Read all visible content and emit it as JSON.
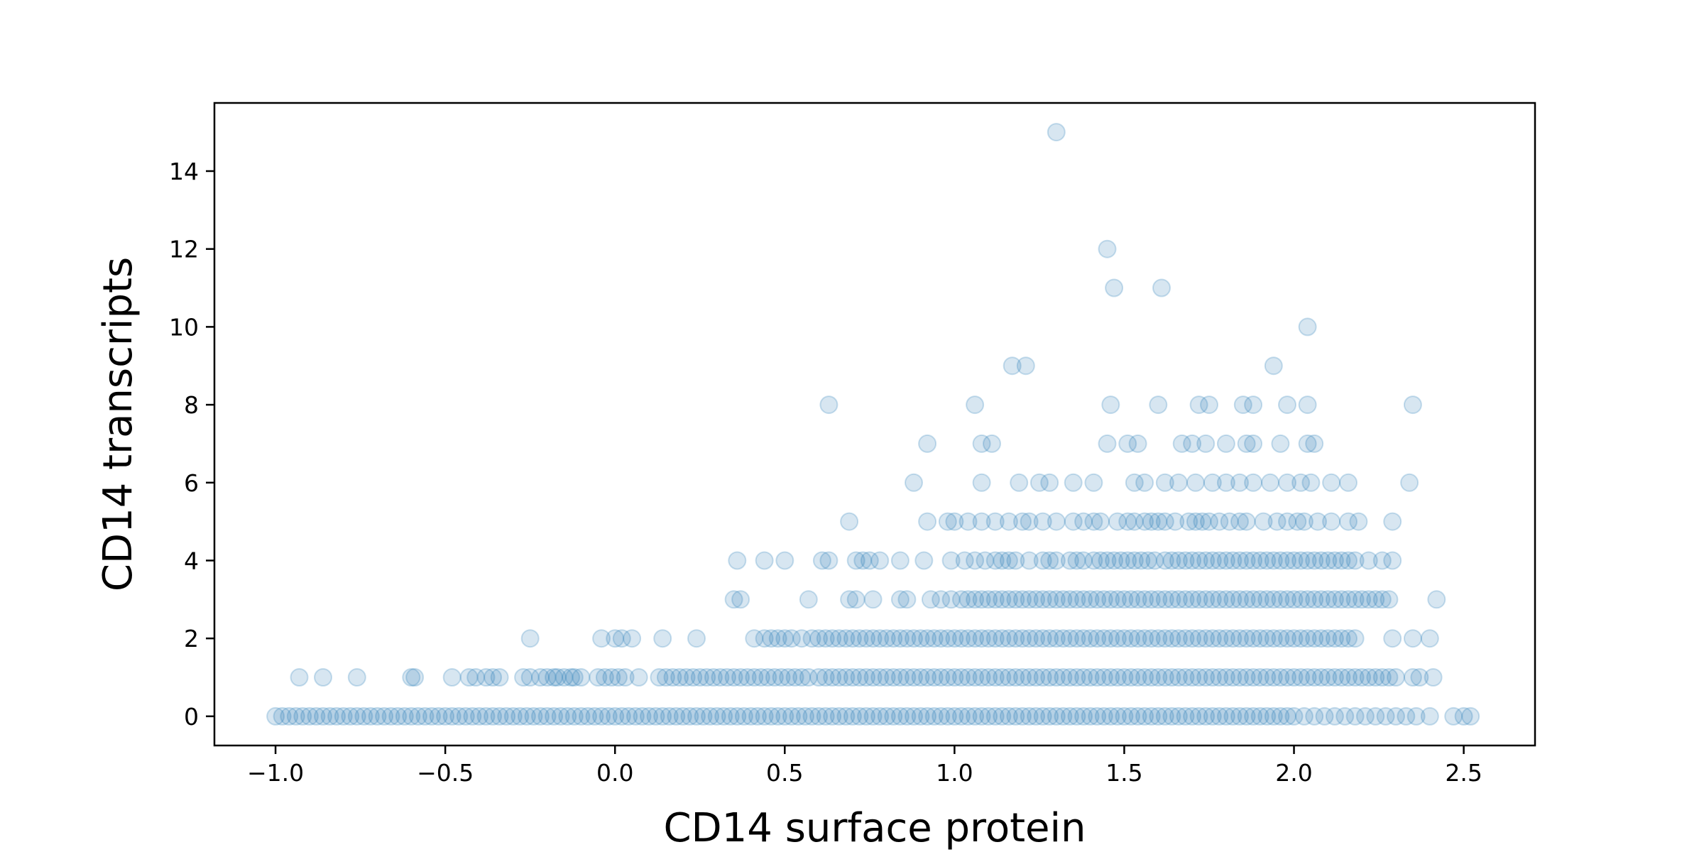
{
  "chart_data": {
    "type": "scatter",
    "title": "",
    "xlabel": "CD14 surface protein",
    "ylabel": "CD14 transcripts",
    "xlim": [
      -1.18,
      2.71
    ],
    "ylim": [
      -0.75,
      15.75
    ],
    "x_ticks": [
      -1.0,
      -0.5,
      0.0,
      0.5,
      1.0,
      1.5,
      2.0,
      2.5
    ],
    "x_tick_labels": [
      "−1.0",
      "−0.5",
      "0.0",
      "0.5",
      "1.0",
      "1.5",
      "2.0",
      "2.5"
    ],
    "y_ticks": [
      0,
      2,
      4,
      6,
      8,
      10,
      12,
      14
    ],
    "y_tick_labels": [
      "0",
      "2",
      "4",
      "6",
      "8",
      "10",
      "12",
      "14"
    ],
    "grid": false,
    "marker": "hollow-ish translucent circle",
    "color": "#1f77b4",
    "alpha": 0.18,
    "note_points": "rows of [y, x_values...] at integer transcript counts",
    "rows": [
      [
        0,
        -1.0,
        -0.98,
        -0.96,
        -0.94,
        -0.92,
        -0.9,
        -0.88,
        -0.86,
        -0.84,
        -0.82,
        -0.8,
        -0.78,
        -0.76,
        -0.74,
        -0.72,
        -0.7,
        -0.68,
        -0.66,
        -0.64,
        -0.62,
        -0.6,
        -0.58,
        -0.56,
        -0.54,
        -0.52,
        -0.5,
        -0.48,
        -0.46,
        -0.44,
        -0.42,
        -0.4,
        -0.38,
        -0.36,
        -0.34,
        -0.32,
        -0.3,
        -0.28,
        -0.26,
        -0.24,
        -0.22,
        -0.2,
        -0.18,
        -0.16,
        -0.14,
        -0.12,
        -0.1,
        -0.08,
        -0.06,
        -0.04,
        -0.02,
        0.0,
        0.02,
        0.04,
        0.06,
        0.08,
        0.1,
        0.12,
        0.14,
        0.16,
        0.18,
        0.2,
        0.22,
        0.24,
        0.26,
        0.28,
        0.3,
        0.32,
        0.34,
        0.36,
        0.38,
        0.4,
        0.42,
        0.44,
        0.46,
        0.48,
        0.5,
        0.52,
        0.54,
        0.56,
        0.58,
        0.6,
        0.62,
        0.64,
        0.66,
        0.68,
        0.7,
        0.72,
        0.74,
        0.76,
        0.78,
        0.8,
        0.82,
        0.84,
        0.86,
        0.88,
        0.9,
        0.92,
        0.94,
        0.96,
        0.98,
        1.0,
        1.02,
        1.04,
        1.06,
        1.08,
        1.1,
        1.12,
        1.14,
        1.16,
        1.18,
        1.2,
        1.22,
        1.24,
        1.26,
        1.28,
        1.3,
        1.32,
        1.34,
        1.36,
        1.38,
        1.4,
        1.42,
        1.44,
        1.46,
        1.48,
        1.5,
        1.52,
        1.54,
        1.56,
        1.58,
        1.6,
        1.62,
        1.64,
        1.66,
        1.68,
        1.7,
        1.72,
        1.74,
        1.76,
        1.78,
        1.8,
        1.82,
        1.84,
        1.86,
        1.88,
        1.9,
        1.92,
        1.94,
        1.96,
        1.98,
        2.0,
        2.03,
        2.06,
        2.09,
        2.12,
        2.15,
        2.18,
        2.21,
        2.24,
        2.27,
        2.3,
        2.33,
        2.36,
        2.4,
        2.47,
        2.5,
        2.52
      ],
      [
        1,
        -0.93,
        -0.86,
        -0.76,
        -0.6,
        -0.59,
        -0.48,
        -0.43,
        -0.41,
        -0.38,
        -0.36,
        -0.34,
        -0.27,
        -0.25,
        -0.22,
        -0.2,
        -0.18,
        -0.17,
        -0.15,
        -0.13,
        -0.12,
        -0.1,
        -0.05,
        -0.03,
        -0.01,
        0.01,
        0.03,
        0.07,
        0.13,
        0.15,
        0.17,
        0.19,
        0.21,
        0.23,
        0.25,
        0.27,
        0.29,
        0.31,
        0.33,
        0.35,
        0.37,
        0.39,
        0.41,
        0.43,
        0.45,
        0.47,
        0.49,
        0.51,
        0.53,
        0.55,
        0.57,
        0.6,
        0.62,
        0.64,
        0.66,
        0.68,
        0.7,
        0.72,
        0.74,
        0.76,
        0.78,
        0.8,
        0.82,
        0.84,
        0.86,
        0.88,
        0.9,
        0.92,
        0.94,
        0.96,
        0.98,
        1.0,
        1.02,
        1.04,
        1.06,
        1.08,
        1.1,
        1.12,
        1.14,
        1.16,
        1.18,
        1.2,
        1.22,
        1.24,
        1.26,
        1.28,
        1.3,
        1.32,
        1.34,
        1.36,
        1.38,
        1.4,
        1.42,
        1.44,
        1.46,
        1.48,
        1.5,
        1.52,
        1.54,
        1.56,
        1.58,
        1.6,
        1.62,
        1.64,
        1.66,
        1.68,
        1.7,
        1.72,
        1.74,
        1.76,
        1.78,
        1.8,
        1.82,
        1.84,
        1.86,
        1.88,
        1.9,
        1.92,
        1.94,
        1.96,
        1.98,
        2.0,
        2.02,
        2.04,
        2.06,
        2.08,
        2.1,
        2.12,
        2.14,
        2.16,
        2.18,
        2.2,
        2.22,
        2.24,
        2.26,
        2.28,
        2.3,
        2.35,
        2.37,
        2.41
      ],
      [
        2,
        -0.25,
        -0.04,
        0.0,
        0.02,
        0.05,
        0.14,
        0.24,
        0.41,
        0.44,
        0.46,
        0.48,
        0.5,
        0.52,
        0.55,
        0.58,
        0.6,
        0.62,
        0.64,
        0.66,
        0.68,
        0.7,
        0.72,
        0.74,
        0.76,
        0.78,
        0.8,
        0.82,
        0.84,
        0.86,
        0.88,
        0.9,
        0.92,
        0.94,
        0.96,
        0.98,
        1.0,
        1.02,
        1.04,
        1.06,
        1.08,
        1.1,
        1.12,
        1.14,
        1.16,
        1.18,
        1.2,
        1.22,
        1.24,
        1.26,
        1.28,
        1.3,
        1.32,
        1.34,
        1.36,
        1.38,
        1.4,
        1.42,
        1.44,
        1.46,
        1.48,
        1.5,
        1.52,
        1.54,
        1.56,
        1.58,
        1.6,
        1.62,
        1.64,
        1.66,
        1.68,
        1.7,
        1.72,
        1.74,
        1.76,
        1.78,
        1.8,
        1.82,
        1.84,
        1.86,
        1.88,
        1.9,
        1.92,
        1.94,
        1.96,
        1.98,
        2.0,
        2.02,
        2.04,
        2.06,
        2.08,
        2.1,
        2.12,
        2.14,
        2.16,
        2.18,
        2.29,
        2.35,
        2.4
      ],
      [
        3,
        0.35,
        0.37,
        0.57,
        0.69,
        0.71,
        0.76,
        0.84,
        0.86,
        0.93,
        0.96,
        0.99,
        1.02,
        1.04,
        1.06,
        1.08,
        1.1,
        1.12,
        1.14,
        1.16,
        1.18,
        1.2,
        1.22,
        1.24,
        1.26,
        1.28,
        1.3,
        1.32,
        1.34,
        1.36,
        1.38,
        1.4,
        1.42,
        1.44,
        1.46,
        1.48,
        1.5,
        1.52,
        1.54,
        1.56,
        1.58,
        1.6,
        1.62,
        1.64,
        1.66,
        1.68,
        1.7,
        1.72,
        1.74,
        1.76,
        1.78,
        1.8,
        1.82,
        1.84,
        1.86,
        1.88,
        1.9,
        1.92,
        1.94,
        1.96,
        1.98,
        2.0,
        2.02,
        2.04,
        2.06,
        2.08,
        2.1,
        2.12,
        2.14,
        2.16,
        2.18,
        2.2,
        2.22,
        2.24,
        2.26,
        2.28,
        2.42
      ],
      [
        4,
        0.36,
        0.44,
        0.5,
        0.61,
        0.63,
        0.71,
        0.73,
        0.75,
        0.78,
        0.84,
        0.91,
        0.99,
        1.03,
        1.06,
        1.09,
        1.12,
        1.14,
        1.16,
        1.18,
        1.22,
        1.26,
        1.28,
        1.3,
        1.34,
        1.36,
        1.38,
        1.41,
        1.43,
        1.45,
        1.47,
        1.49,
        1.51,
        1.53,
        1.55,
        1.57,
        1.59,
        1.62,
        1.64,
        1.66,
        1.68,
        1.7,
        1.72,
        1.74,
        1.76,
        1.78,
        1.8,
        1.82,
        1.84,
        1.86,
        1.88,
        1.9,
        1.92,
        1.94,
        1.96,
        1.98,
        2.0,
        2.02,
        2.04,
        2.06,
        2.08,
        2.1,
        2.12,
        2.14,
        2.16,
        2.18,
        2.22,
        2.26,
        2.29
      ],
      [
        5,
        0.69,
        0.92,
        0.98,
        1.0,
        1.04,
        1.08,
        1.12,
        1.16,
        1.2,
        1.22,
        1.26,
        1.3,
        1.35,
        1.38,
        1.41,
        1.43,
        1.48,
        1.51,
        1.53,
        1.56,
        1.58,
        1.6,
        1.62,
        1.65,
        1.69,
        1.71,
        1.73,
        1.75,
        1.78,
        1.81,
        1.84,
        1.86,
        1.91,
        1.95,
        1.98,
        2.01,
        2.03,
        2.07,
        2.11,
        2.16,
        2.19,
        2.29
      ],
      [
        6,
        0.88,
        1.08,
        1.19,
        1.25,
        1.28,
        1.35,
        1.41,
        1.53,
        1.56,
        1.62,
        1.66,
        1.71,
        1.76,
        1.8,
        1.84,
        1.88,
        1.93,
        1.98,
        2.02,
        2.05,
        2.11,
        2.16,
        2.34
      ],
      [
        7,
        0.92,
        1.08,
        1.11,
        1.45,
        1.51,
        1.54,
        1.67,
        1.7,
        1.74,
        1.8,
        1.86,
        1.88,
        1.96,
        2.04,
        2.06
      ],
      [
        8,
        0.63,
        1.06,
        1.46,
        1.6,
        1.72,
        1.75,
        1.85,
        1.88,
        1.98,
        2.04,
        2.35
      ],
      [
        9,
        1.17,
        1.21,
        1.94
      ],
      [
        10,
        2.04
      ],
      [
        11,
        1.47,
        1.61
      ],
      [
        12,
        1.45
      ],
      [
        15,
        1.3
      ]
    ]
  }
}
